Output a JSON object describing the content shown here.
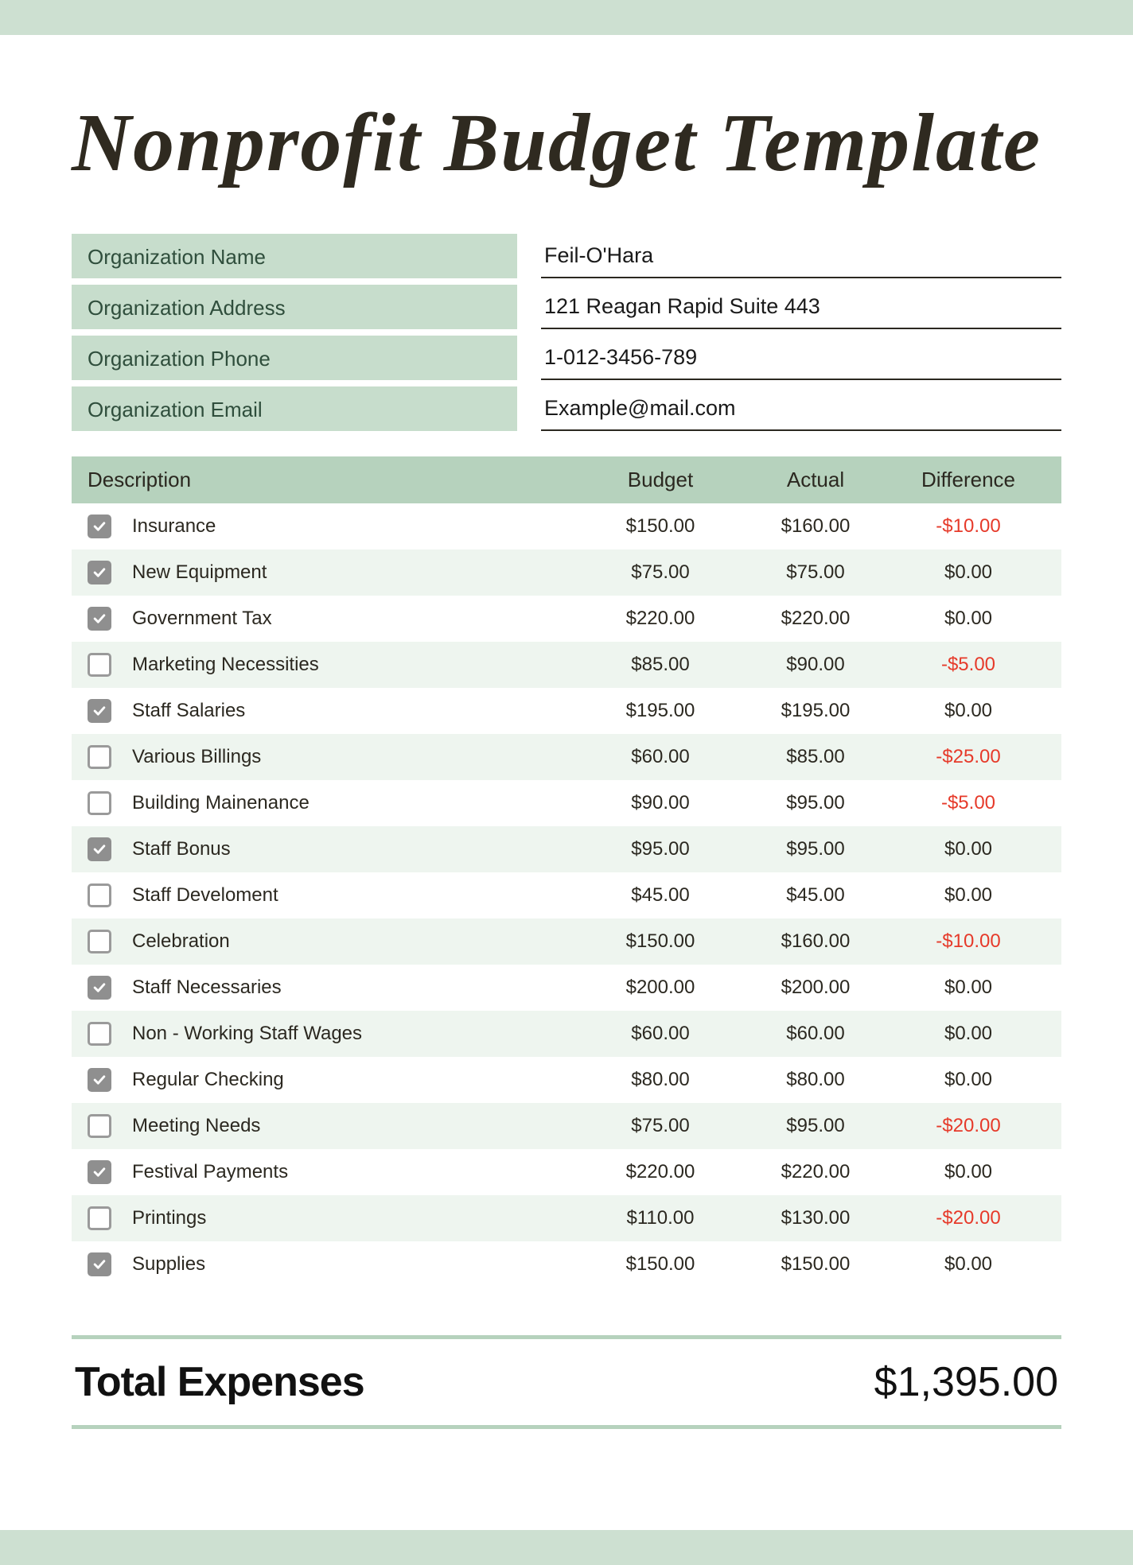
{
  "colors": {
    "band": "#cde0d1",
    "label_bg": "#c7ddcc",
    "header_bg": "#b6d2bd",
    "row_alt": "#eef5ef",
    "text": "#2b2820",
    "label_text": "#2f4e3c",
    "negative": "#e63a2a",
    "underline": "#2b2820",
    "check_checked_bg": "#8f8f8f",
    "check_border": "#9a9a9a"
  },
  "title": "Nonprofit Budget Template",
  "org": {
    "name_label": "Organization Name",
    "name_value": "Feil-O'Hara",
    "address_label": "Organization Address",
    "address_value": "121 Reagan Rapid Suite 443",
    "phone_label": "Organization Phone",
    "phone_value": "1-012-3456-789",
    "email_label": "Organization Email",
    "email_value": "Example@mail.com"
  },
  "columns": {
    "description": "Description",
    "budget": "Budget",
    "actual": "Actual",
    "difference": "Difference"
  },
  "rows": [
    {
      "checked": true,
      "description": "Insurance",
      "budget": "$150.00",
      "actual": "$160.00",
      "difference": "-$10.00",
      "negative": true
    },
    {
      "checked": true,
      "description": "New Equipment",
      "budget": "$75.00",
      "actual": "$75.00",
      "difference": "$0.00",
      "negative": false
    },
    {
      "checked": true,
      "description": "Government Tax",
      "budget": "$220.00",
      "actual": "$220.00",
      "difference": "$0.00",
      "negative": false
    },
    {
      "checked": false,
      "description": "Marketing Necessities",
      "budget": "$85.00",
      "actual": "$90.00",
      "difference": "-$5.00",
      "negative": true
    },
    {
      "checked": true,
      "description": "Staff Salaries",
      "budget": "$195.00",
      "actual": "$195.00",
      "difference": "$0.00",
      "negative": false
    },
    {
      "checked": false,
      "description": "Various Billings",
      "budget": "$60.00",
      "actual": "$85.00",
      "difference": "-$25.00",
      "negative": true
    },
    {
      "checked": false,
      "description": "Building Mainenance",
      "budget": "$90.00",
      "actual": "$95.00",
      "difference": "-$5.00",
      "negative": true
    },
    {
      "checked": true,
      "description": "Staff Bonus",
      "budget": "$95.00",
      "actual": "$95.00",
      "difference": "$0.00",
      "negative": false
    },
    {
      "checked": false,
      "description": "Staff Develoment",
      "budget": "$45.00",
      "actual": "$45.00",
      "difference": "$0.00",
      "negative": false
    },
    {
      "checked": false,
      "description": "Celebration",
      "budget": "$150.00",
      "actual": "$160.00",
      "difference": "-$10.00",
      "negative": true
    },
    {
      "checked": true,
      "description": "Staff Necessaries",
      "budget": "$200.00",
      "actual": "$200.00",
      "difference": "$0.00",
      "negative": false
    },
    {
      "checked": false,
      "description": "Non - Working Staff Wages",
      "budget": "$60.00",
      "actual": "$60.00",
      "difference": "$0.00",
      "negative": false
    },
    {
      "checked": true,
      "description": "Regular Checking",
      "budget": "$80.00",
      "actual": "$80.00",
      "difference": "$0.00",
      "negative": false
    },
    {
      "checked": false,
      "description": "Meeting Needs",
      "budget": "$75.00",
      "actual": "$95.00",
      "difference": "-$20.00",
      "negative": true
    },
    {
      "checked": true,
      "description": "Festival Payments",
      "budget": "$220.00",
      "actual": "$220.00",
      "difference": "$0.00",
      "negative": false
    },
    {
      "checked": false,
      "description": "Printings",
      "budget": "$110.00",
      "actual": "$130.00",
      "difference": "-$20.00",
      "negative": true
    },
    {
      "checked": true,
      "description": "Supplies",
      "budget": "$150.00",
      "actual": "$150.00",
      "difference": "$0.00",
      "negative": false
    }
  ],
  "total": {
    "label": "Total Expenses",
    "value": "$1,395.00"
  }
}
